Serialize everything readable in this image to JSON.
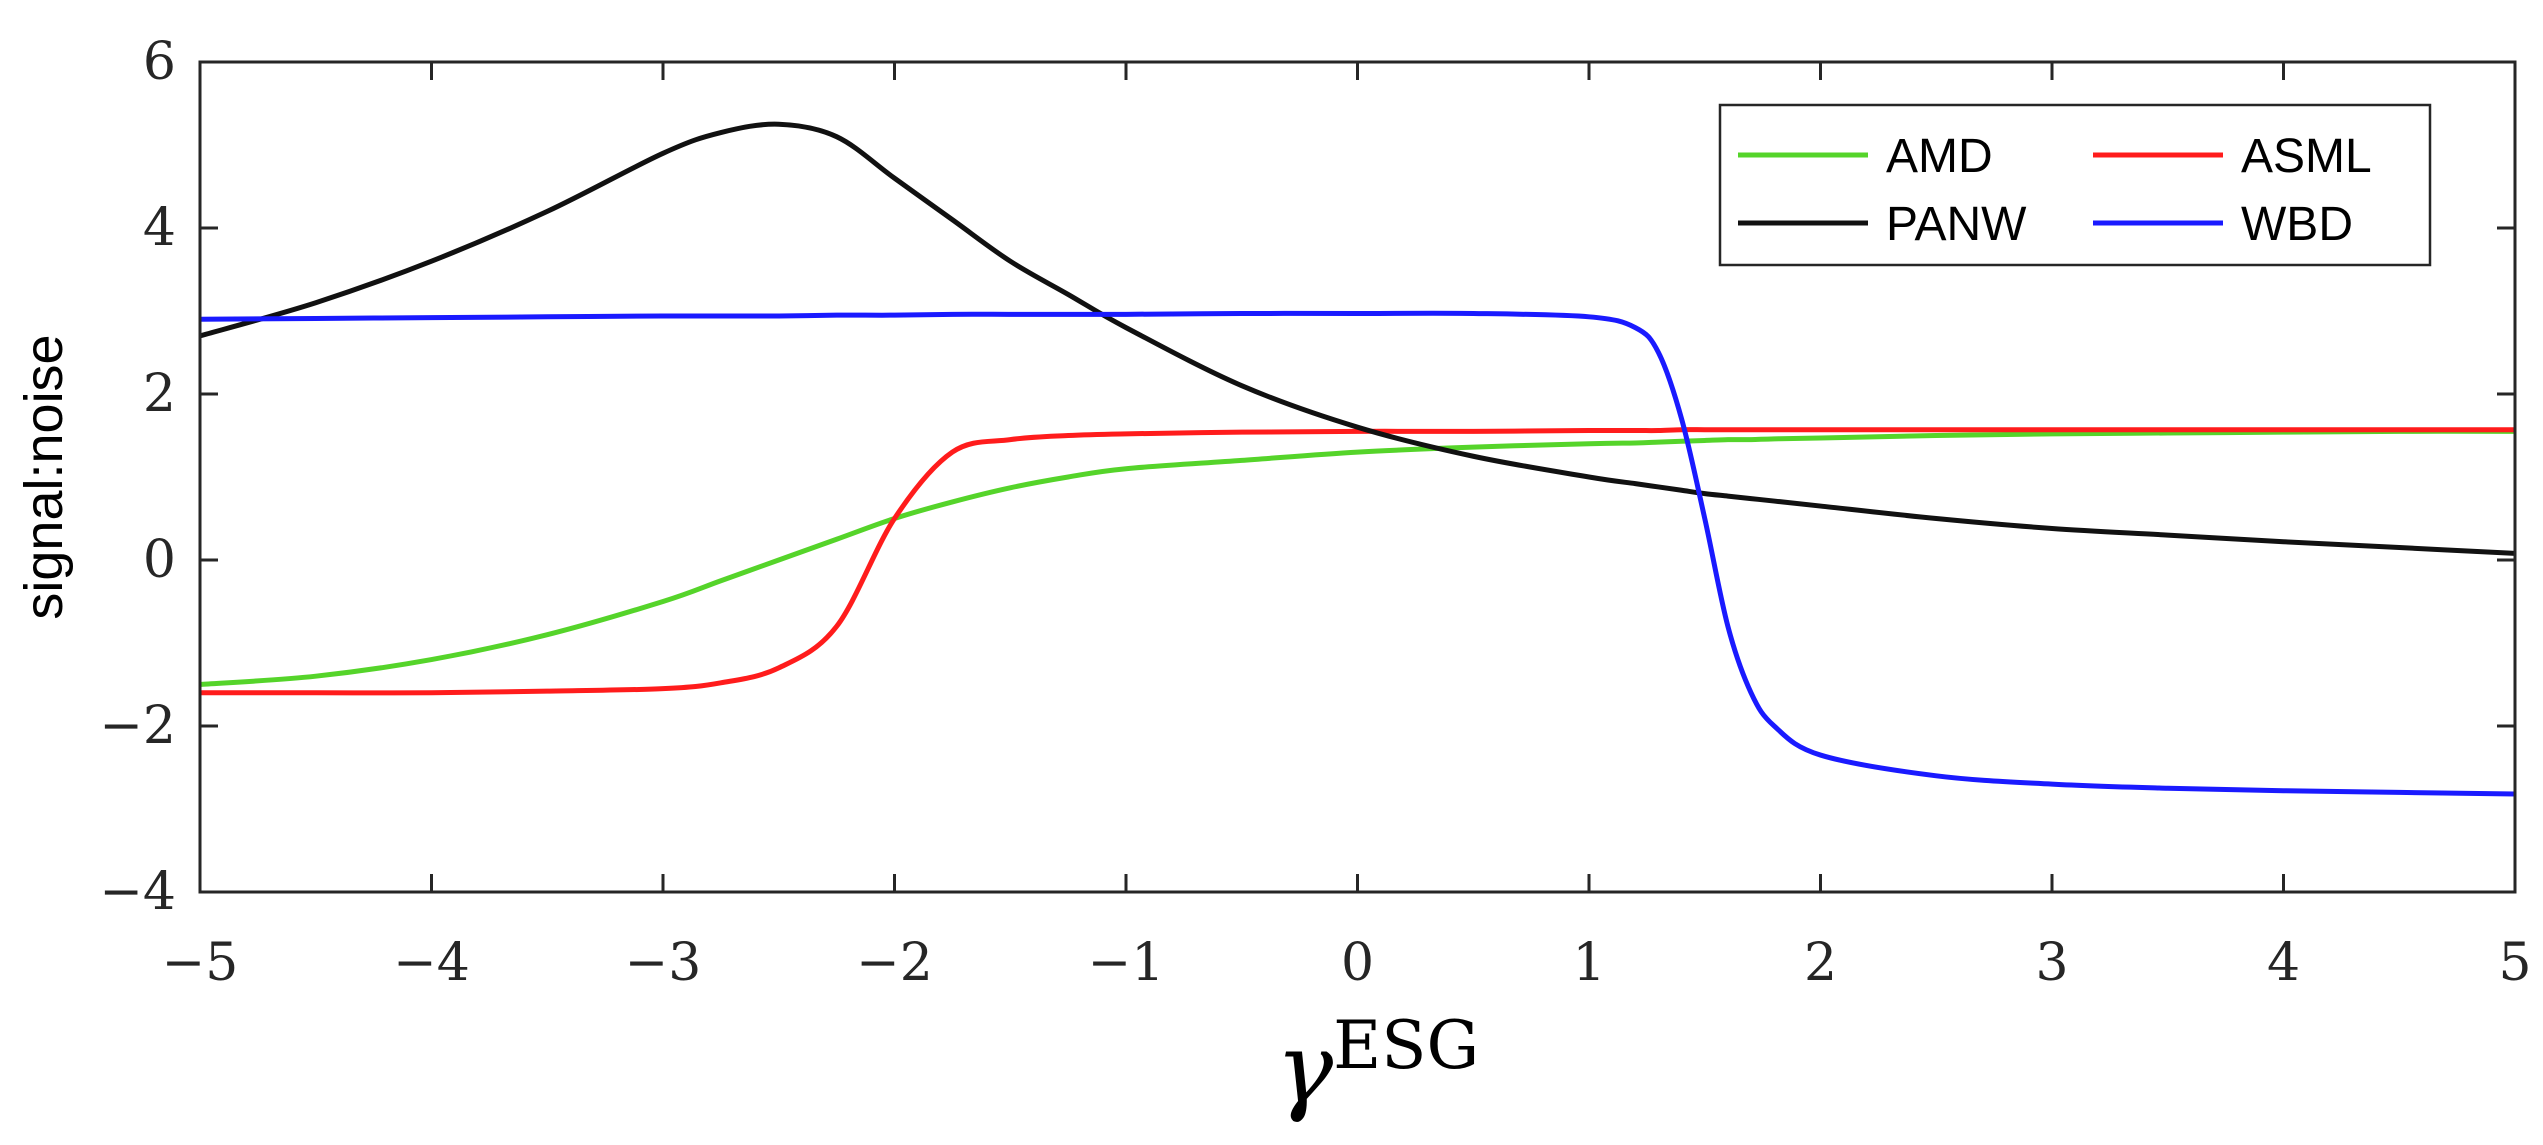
{
  "chart_data": {
    "type": "line",
    "xlabel": "γ",
    "xlabel_superscript": "ESG",
    "ylabel": "signal:noise",
    "xlim": [
      -5,
      5
    ],
    "ylim": [
      -4,
      6
    ],
    "xticks": [
      -5,
      -4,
      -3,
      -2,
      -1,
      0,
      1,
      2,
      3,
      4,
      5
    ],
    "yticks": [
      -4,
      -2,
      0,
      2,
      4,
      6
    ],
    "grid": false,
    "legend_position": "top-right",
    "x": [
      -5,
      -4.5,
      -4,
      -3.5,
      -3,
      -2.75,
      -2.5,
      -2.25,
      -2,
      -1.75,
      -1.5,
      -1.25,
      -1,
      -0.5,
      0,
      0.5,
      1,
      1.2,
      1.3,
      1.4,
      1.5,
      1.6,
      1.7,
      1.8,
      2,
      2.5,
      3,
      3.5,
      4,
      4.5,
      5
    ],
    "series": [
      {
        "name": "AMD",
        "color": "#55d42a",
        "values": [
          -1.5,
          -1.4,
          -1.2,
          -0.9,
          -0.5,
          -0.25,
          0.0,
          0.25,
          0.5,
          0.7,
          0.87,
          1.0,
          1.1,
          1.2,
          1.3,
          1.36,
          1.4,
          1.41,
          1.42,
          1.43,
          1.44,
          1.45,
          1.45,
          1.46,
          1.47,
          1.5,
          1.52,
          1.53,
          1.54,
          1.55,
          1.55
        ]
      },
      {
        "name": "ASML",
        "color": "#ff1c1c",
        "values": [
          -1.6,
          -1.6,
          -1.6,
          -1.58,
          -1.55,
          -1.48,
          -1.3,
          -0.8,
          0.5,
          1.3,
          1.45,
          1.5,
          1.52,
          1.54,
          1.55,
          1.55,
          1.56,
          1.56,
          1.56,
          1.57,
          1.57,
          1.57,
          1.57,
          1.57,
          1.57,
          1.57,
          1.57,
          1.57,
          1.57,
          1.57,
          1.57
        ]
      },
      {
        "name": "PANW",
        "color": "#111111",
        "values": [
          2.7,
          3.1,
          3.6,
          4.2,
          4.9,
          5.15,
          5.25,
          5.1,
          4.6,
          4.1,
          3.6,
          3.2,
          2.8,
          2.1,
          1.6,
          1.25,
          1.0,
          0.92,
          0.88,
          0.84,
          0.8,
          0.77,
          0.74,
          0.71,
          0.65,
          0.5,
          0.38,
          0.3,
          0.22,
          0.15,
          0.08
        ]
      },
      {
        "name": "WBD",
        "color": "#1a1aff",
        "values": [
          2.9,
          2.91,
          2.92,
          2.93,
          2.94,
          2.94,
          2.94,
          2.95,
          2.95,
          2.96,
          2.96,
          2.96,
          2.96,
          2.97,
          2.97,
          2.97,
          2.93,
          2.8,
          2.5,
          1.7,
          0.5,
          -0.8,
          -1.6,
          -2.0,
          -2.35,
          -2.6,
          -2.7,
          -2.75,
          -2.78,
          -2.8,
          -2.82
        ]
      }
    ]
  }
}
